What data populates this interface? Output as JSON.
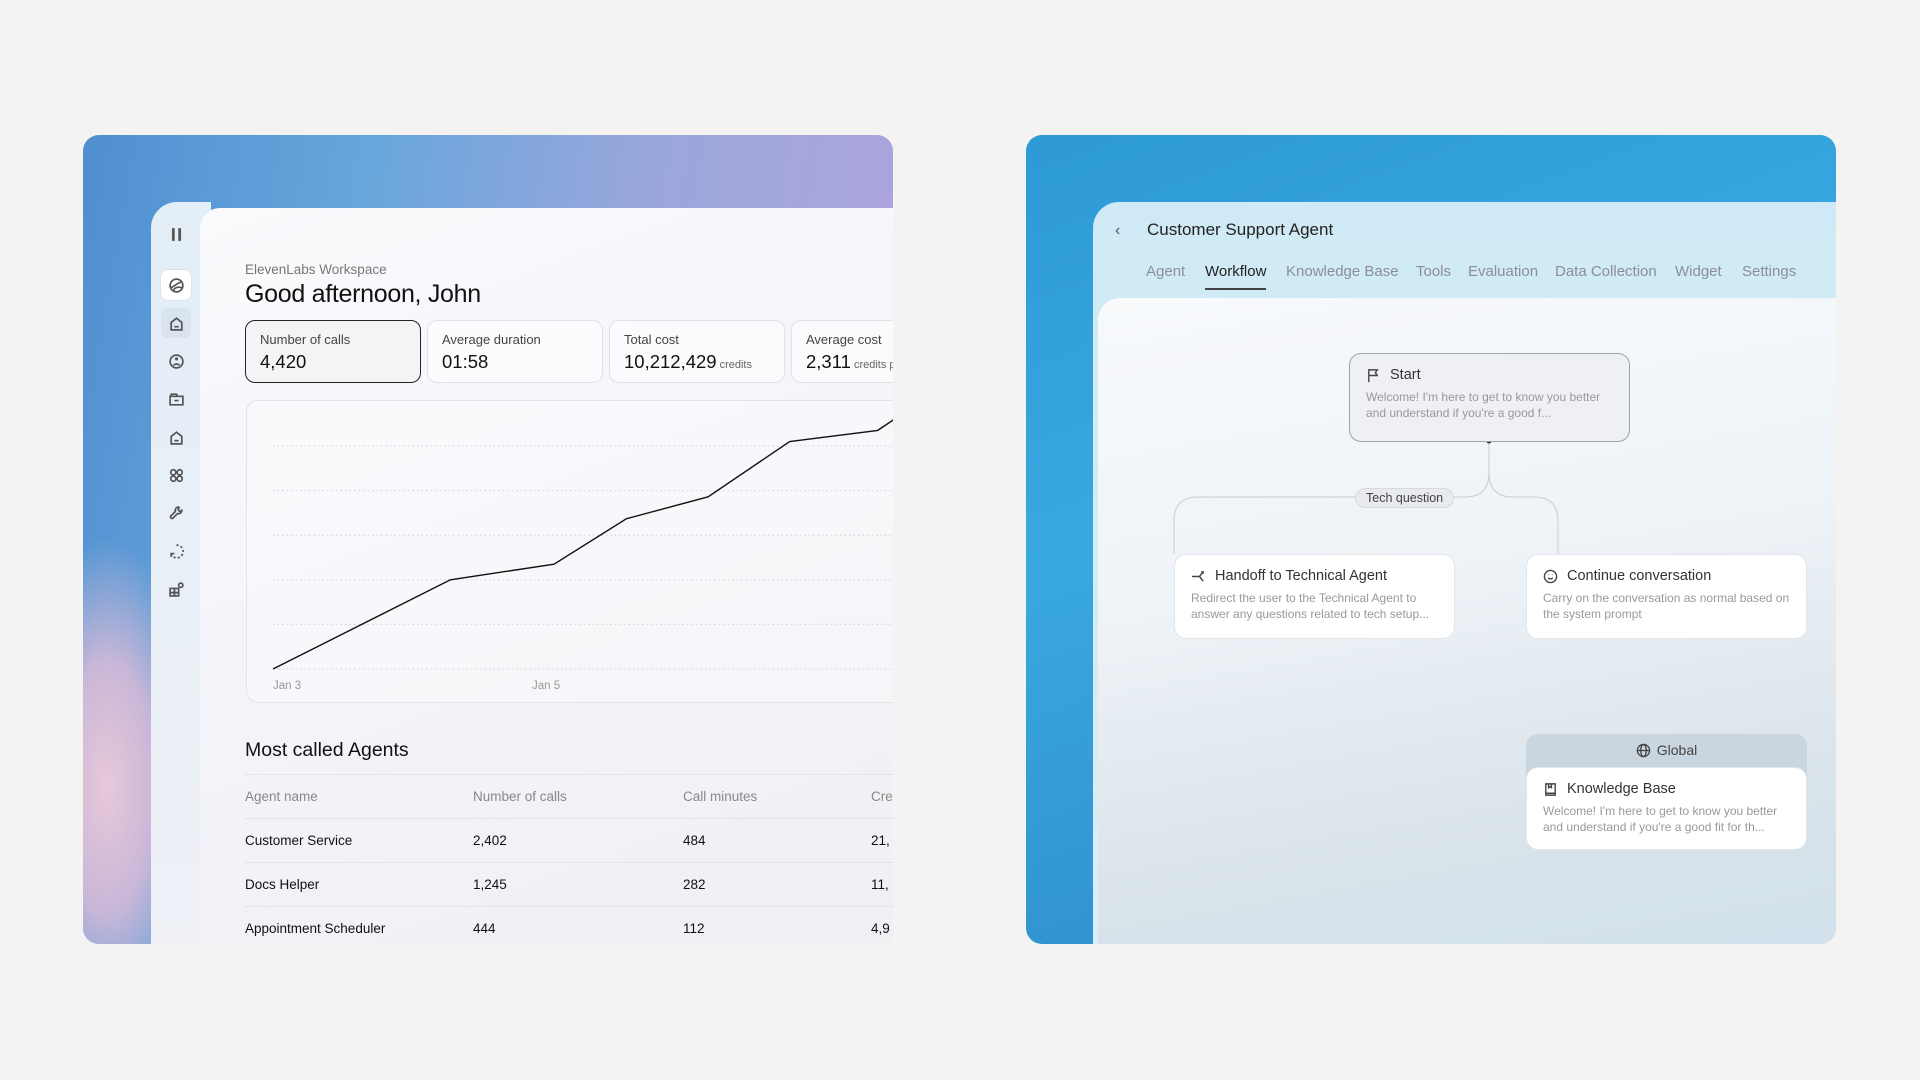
{
  "dashboard": {
    "workspace": "ElevenLabs Workspace",
    "greeting": "Good afternoon, John",
    "sidebar_icons": [
      "pause-icon",
      "ellevenlabs-logo-icon",
      "home-icon",
      "agent-icon",
      "folder-icon",
      "home-icon",
      "apps-icon",
      "wrench-icon",
      "history-icon",
      "add-widget-icon"
    ],
    "stats": [
      {
        "label": "Number of calls",
        "value": "4,420",
        "unit": ""
      },
      {
        "label": "Average duration",
        "value": "01:58",
        "unit": ""
      },
      {
        "label": "Total cost",
        "value": "10,212,429",
        "unit": "credits"
      },
      {
        "label": "Average cost",
        "value": "2,311",
        "unit": "credits p"
      }
    ],
    "table": {
      "title": "Most called Agents",
      "columns": [
        "Agent name",
        "Number of calls",
        "Call minutes",
        "Cre"
      ],
      "rows": [
        [
          "Customer Service",
          "2,402",
          "484",
          "21,"
        ],
        [
          "Docs Helper",
          "1,245",
          "282",
          "11,"
        ],
        [
          "Appointment Scheduler",
          "444",
          "112",
          "4,9"
        ]
      ]
    }
  },
  "chart_data": {
    "type": "line",
    "title": "",
    "xlabel": "",
    "ylabel": "",
    "x_ticks": [
      {
        "label": "Jan 3",
        "x": 3
      },
      {
        "label": "Jan 5",
        "x": 5
      }
    ],
    "series": [
      {
        "x": [
          3,
          4.37,
          5.17,
          5.73,
          6.36,
          6.99,
          7.67,
          7.9
        ],
        "y": [
          0,
          2.0,
          2.35,
          3.37,
          3.86,
          5.1,
          5.35,
          5.8
        ]
      }
    ],
    "xlim": [
      2.8,
      7.9
    ],
    "ylim": [
      0,
      5.6
    ],
    "gridlines": [
      0,
      1,
      2,
      3,
      4,
      5
    ],
    "grid": true,
    "line_color": "#111111"
  },
  "agent": {
    "title": "Customer Support Agent",
    "tabs": [
      "Agent",
      "Workflow",
      "Knowledge Base",
      "Tools",
      "Evaluation",
      "Data Collection",
      "Widget",
      "Settings"
    ],
    "active_tab": "Workflow",
    "start": {
      "title": "Start",
      "desc": "Welcome! I'm here to get to know you better and understand if you're a good f..."
    },
    "edge_label": "Tech question",
    "handoff": {
      "title": "Handoff to Technical Agent",
      "desc": "Redirect the user to the Technical Agent to answer any questions related to tech setup..."
    },
    "continue": {
      "title": "Continue conversation",
      "desc": "Carry on the conversation as normal based on the system prompt"
    },
    "global_label": "Global",
    "knowledge": {
      "title": "Knowledge Base",
      "desc": "Welcome! I'm here to get to know you better and understand if you're a good fit for th..."
    }
  }
}
